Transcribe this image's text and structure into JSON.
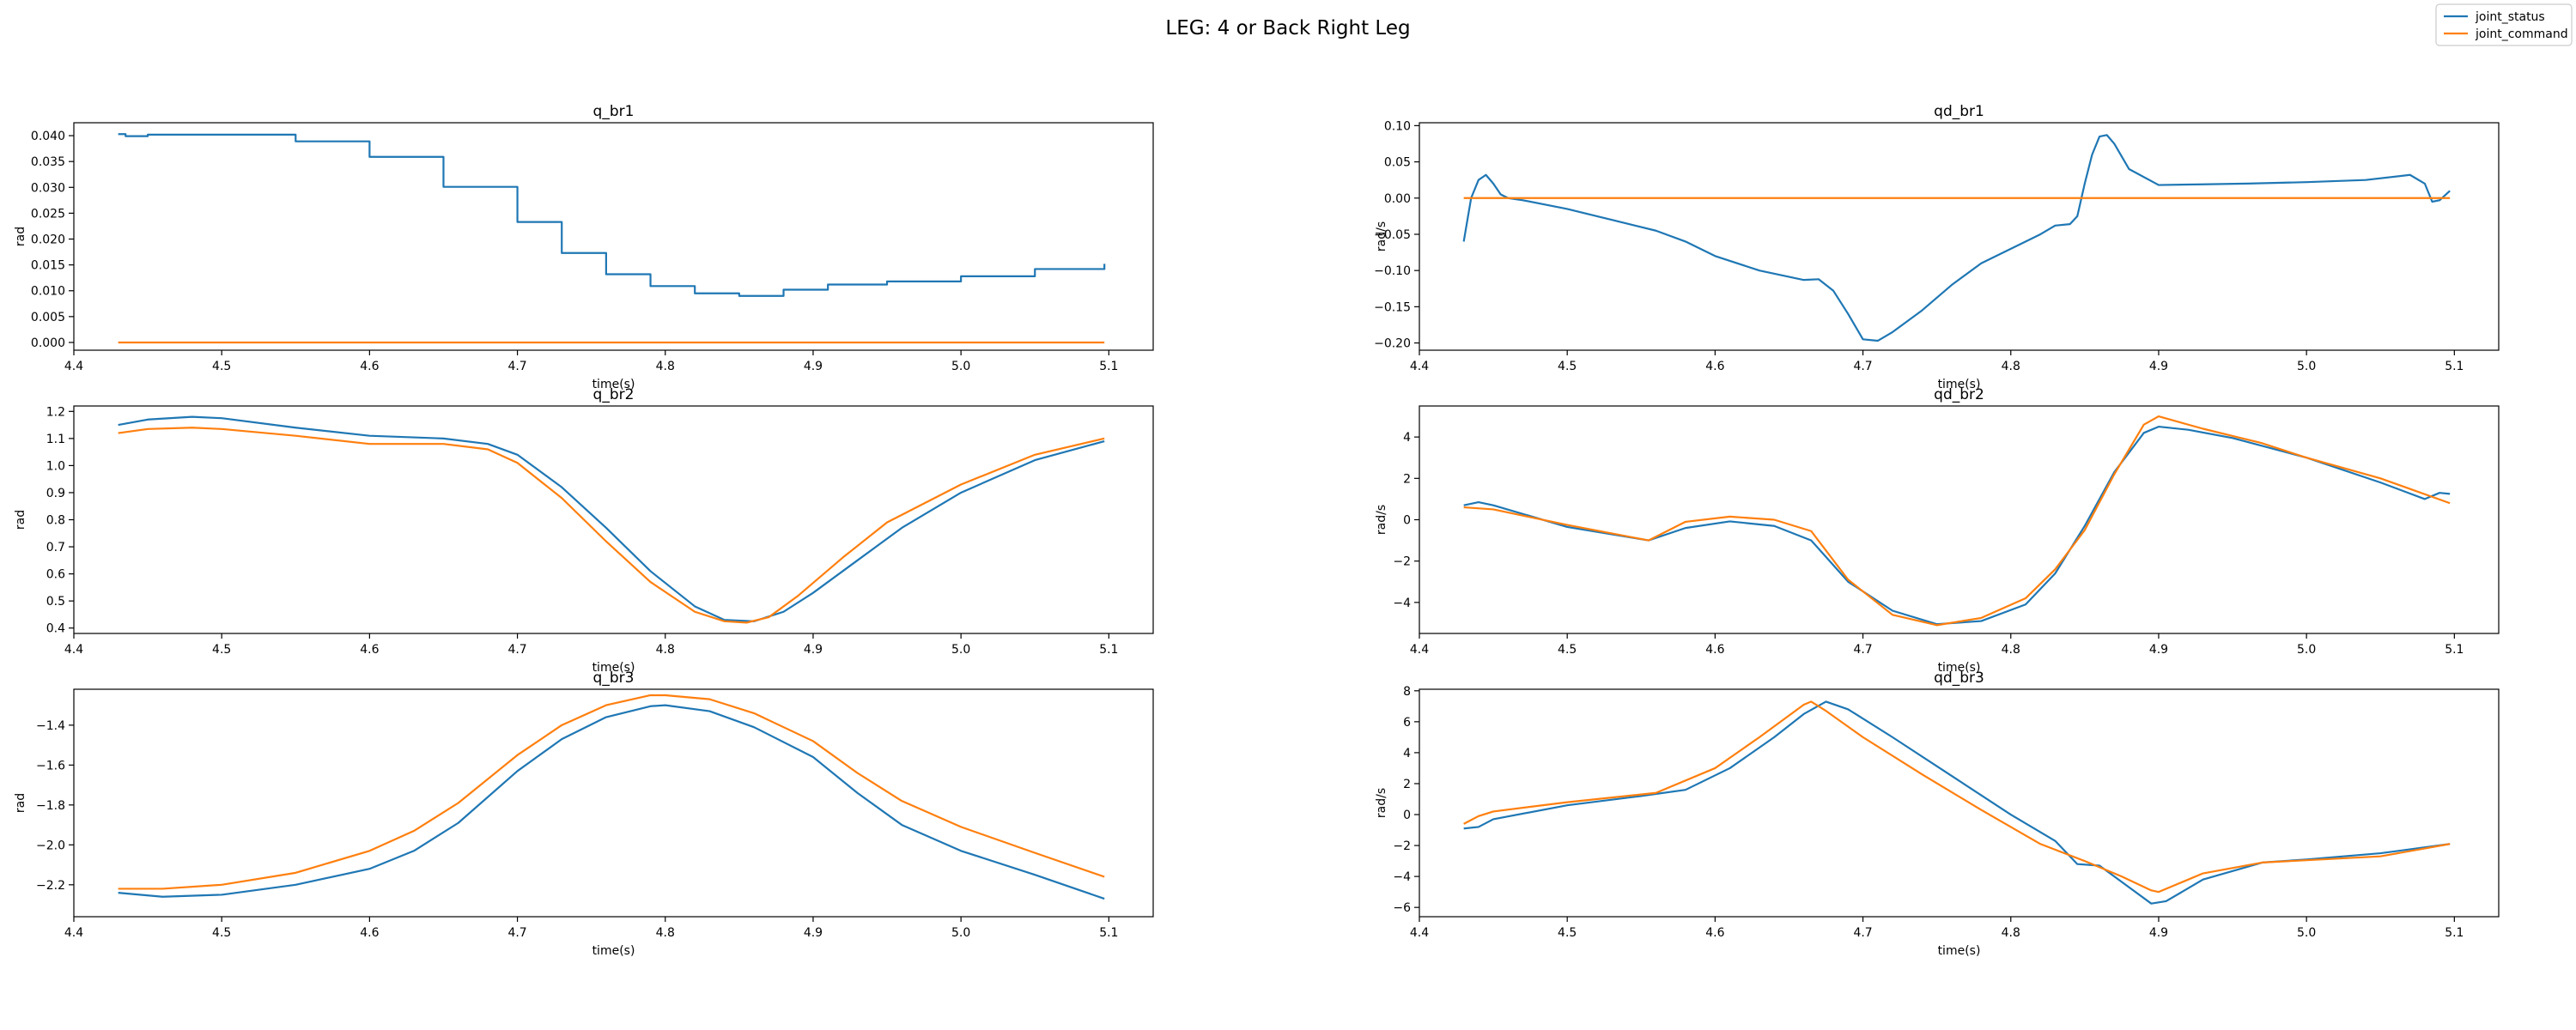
{
  "figure": {
    "suptitle": "LEG: 4 or Back Right Leg",
    "colors": {
      "joint_status": "#1f77b4",
      "joint_command": "#ff7f0e"
    },
    "legend": {
      "placement": "top-right",
      "entries": [
        "joint_status",
        "joint_command"
      ]
    }
  },
  "chart_data": [
    {
      "type": "line",
      "title": "q_br1",
      "xlabel": "time(s)",
      "ylabel": "rad",
      "xlim": [
        4.4,
        5.13
      ],
      "ylim": [
        -0.0015,
        0.0425
      ],
      "xticks": [
        4.4,
        4.5,
        4.6,
        4.7,
        4.8,
        4.9,
        5.0,
        5.1
      ],
      "xtick_labels": [
        "4.4",
        "4.5",
        "4.6",
        "4.7",
        "4.8",
        "4.9",
        "5.0",
        "5.1"
      ],
      "yticks": [
        0.0,
        0.005,
        0.01,
        0.015,
        0.02,
        0.025,
        0.03,
        0.035,
        0.04
      ],
      "ytick_labels": [
        "0.000",
        "0.005",
        "0.010",
        "0.015",
        "0.020",
        "0.025",
        "0.030",
        "0.035",
        "0.040"
      ],
      "grid": false,
      "series": [
        {
          "name": "joint_status",
          "step": true,
          "x": [
            4.43,
            4.435,
            4.44,
            4.45,
            4.48,
            4.5,
            4.55,
            4.6,
            4.65,
            4.7,
            4.73,
            4.76,
            4.79,
            4.82,
            4.85,
            4.88,
            4.91,
            4.95,
            5.0,
            5.05,
            5.097
          ],
          "y": [
            0.0403,
            0.0399,
            0.0399,
            0.0402,
            0.0402,
            0.0402,
            0.0389,
            0.0359,
            0.0301,
            0.0233,
            0.0173,
            0.0132,
            0.0109,
            0.0095,
            0.009,
            0.0102,
            0.0112,
            0.0118,
            0.0128,
            0.0142,
            0.0152
          ]
        },
        {
          "name": "joint_command",
          "x": [
            4.43,
            5.097
          ],
          "y": [
            0.0,
            0.0
          ]
        }
      ]
    },
    {
      "type": "line",
      "title": "qd_br1",
      "xlabel": "time(s)",
      "ylabel": "rad/s",
      "xlim": [
        4.4,
        5.13
      ],
      "ylim": [
        -0.21,
        0.104
      ],
      "xticks": [
        4.4,
        4.5,
        4.6,
        4.7,
        4.8,
        4.9,
        5.0,
        5.1
      ],
      "xtick_labels": [
        "4.4",
        "4.5",
        "4.6",
        "4.7",
        "4.8",
        "4.9",
        "5.0",
        "5.1"
      ],
      "yticks": [
        -0.2,
        -0.15,
        -0.1,
        -0.05,
        0.0,
        0.05,
        0.1
      ],
      "ytick_labels": [
        "−0.20",
        "−0.15",
        "−0.10",
        "−0.05",
        "0.00",
        "0.05",
        "0.10"
      ],
      "grid": false,
      "series": [
        {
          "name": "joint_status",
          "x": [
            4.43,
            4.435,
            4.44,
            4.445,
            4.45,
            4.455,
            4.46,
            4.47,
            4.5,
            4.53,
            4.56,
            4.58,
            4.6,
            4.63,
            4.66,
            4.67,
            4.68,
            4.69,
            4.7,
            4.71,
            4.72,
            4.74,
            4.76,
            4.78,
            4.8,
            4.82,
            4.83,
            4.84,
            4.845,
            4.85,
            4.855,
            4.86,
            4.865,
            4.87,
            4.88,
            4.9,
            4.93,
            4.96,
            5.0,
            5.04,
            5.07,
            5.08,
            5.085,
            5.09,
            5.097
          ],
          "y": [
            -0.06,
            0.0,
            0.025,
            0.032,
            0.02,
            0.005,
            0.0,
            -0.003,
            -0.015,
            -0.03,
            -0.045,
            -0.06,
            -0.08,
            -0.1,
            -0.113,
            -0.112,
            -0.128,
            -0.16,
            -0.195,
            -0.197,
            -0.185,
            -0.155,
            -0.12,
            -0.09,
            -0.07,
            -0.05,
            -0.038,
            -0.036,
            -0.025,
            0.02,
            0.06,
            0.085,
            0.087,
            0.075,
            0.04,
            0.018,
            0.019,
            0.02,
            0.022,
            0.025,
            0.032,
            0.02,
            -0.005,
            -0.003,
            0.01
          ]
        },
        {
          "name": "joint_command",
          "x": [
            4.43,
            5.097
          ],
          "y": [
            0.0,
            0.0
          ]
        }
      ]
    },
    {
      "type": "line",
      "title": "q_br2",
      "xlabel": "time(s)",
      "ylabel": "rad",
      "xlim": [
        4.4,
        5.13
      ],
      "ylim": [
        0.38,
        1.22
      ],
      "xticks": [
        4.4,
        4.5,
        4.6,
        4.7,
        4.8,
        4.9,
        5.0,
        5.1
      ],
      "xtick_labels": [
        "4.4",
        "4.5",
        "4.6",
        "4.7",
        "4.8",
        "4.9",
        "5.0",
        "5.1"
      ],
      "yticks": [
        0.4,
        0.5,
        0.6,
        0.7,
        0.8,
        0.9,
        1.0,
        1.1,
        1.2
      ],
      "ytick_labels": [
        "0.4",
        "0.5",
        "0.6",
        "0.7",
        "0.8",
        "0.9",
        "1.0",
        "1.1",
        "1.2"
      ],
      "grid": false,
      "series": [
        {
          "name": "joint_status",
          "x": [
            4.43,
            4.45,
            4.48,
            4.5,
            4.55,
            4.6,
            4.65,
            4.68,
            4.7,
            4.73,
            4.76,
            4.79,
            4.82,
            4.84,
            4.86,
            4.88,
            4.9,
            4.93,
            4.96,
            5.0,
            5.05,
            5.097
          ],
          "y": [
            1.15,
            1.17,
            1.18,
            1.175,
            1.14,
            1.11,
            1.1,
            1.08,
            1.04,
            0.92,
            0.77,
            0.61,
            0.48,
            0.43,
            0.425,
            0.46,
            0.53,
            0.65,
            0.77,
            0.9,
            1.02,
            1.09
          ]
        },
        {
          "name": "joint_command",
          "x": [
            4.43,
            4.45,
            4.48,
            4.5,
            4.55,
            4.6,
            4.65,
            4.68,
            4.7,
            4.73,
            4.76,
            4.79,
            4.82,
            4.84,
            4.855,
            4.87,
            4.89,
            4.92,
            4.95,
            5.0,
            5.05,
            5.097
          ],
          "y": [
            1.12,
            1.135,
            1.14,
            1.135,
            1.11,
            1.08,
            1.08,
            1.06,
            1.01,
            0.88,
            0.72,
            0.57,
            0.46,
            0.425,
            0.42,
            0.44,
            0.52,
            0.66,
            0.79,
            0.93,
            1.04,
            1.1
          ]
        }
      ]
    },
    {
      "type": "line",
      "title": "qd_br2",
      "xlabel": "time(s)",
      "ylabel": "rad/s",
      "xlim": [
        4.4,
        5.13
      ],
      "ylim": [
        -5.5,
        5.5
      ],
      "xticks": [
        4.4,
        4.5,
        4.6,
        4.7,
        4.8,
        4.9,
        5.0,
        5.1
      ],
      "xtick_labels": [
        "4.4",
        "4.5",
        "4.6",
        "4.7",
        "4.8",
        "4.9",
        "5.0",
        "5.1"
      ],
      "yticks": [
        -4,
        -2,
        0,
        2,
        4
      ],
      "ytick_labels": [
        "−4",
        "−2",
        "0",
        "2",
        "4"
      ],
      "grid": false,
      "series": [
        {
          "name": "joint_status",
          "x": [
            4.43,
            4.44,
            4.45,
            4.5,
            4.555,
            4.58,
            4.61,
            4.64,
            4.665,
            4.69,
            4.72,
            4.75,
            4.78,
            4.81,
            4.83,
            4.85,
            4.87,
            4.89,
            4.9,
            4.92,
            4.95,
            5.0,
            5.05,
            5.08,
            5.09,
            5.097
          ],
          "y": [
            0.7,
            0.85,
            0.7,
            -0.35,
            -1.0,
            -0.4,
            -0.08,
            -0.3,
            -1.0,
            -3.0,
            -4.4,
            -5.05,
            -4.9,
            -4.1,
            -2.6,
            -0.3,
            2.3,
            4.2,
            4.5,
            4.35,
            3.95,
            3.0,
            1.8,
            1.0,
            1.3,
            1.25
          ]
        },
        {
          "name": "joint_command",
          "x": [
            4.43,
            4.45,
            4.5,
            4.555,
            4.58,
            4.61,
            4.64,
            4.665,
            4.69,
            4.72,
            4.75,
            4.78,
            4.81,
            4.83,
            4.85,
            4.87,
            4.89,
            4.9,
            4.93,
            4.97,
            5.0,
            5.05,
            5.097
          ],
          "y": [
            0.6,
            0.5,
            -0.25,
            -1.0,
            -0.1,
            0.15,
            0.0,
            -0.55,
            -2.9,
            -4.6,
            -5.1,
            -4.75,
            -3.8,
            -2.4,
            -0.5,
            2.2,
            4.6,
            5.0,
            4.4,
            3.7,
            3.0,
            2.0,
            0.8
          ]
        }
      ]
    },
    {
      "type": "line",
      "title": "q_br3",
      "xlabel": "time(s)",
      "ylabel": "rad",
      "xlim": [
        4.4,
        5.13
      ],
      "ylim": [
        -2.36,
        -1.22
      ],
      "xticks": [
        4.4,
        4.5,
        4.6,
        4.7,
        4.8,
        4.9,
        5.0,
        5.1
      ],
      "xtick_labels": [
        "4.4",
        "4.5",
        "4.6",
        "4.7",
        "4.8",
        "4.9",
        "5.0",
        "5.1"
      ],
      "yticks": [
        -2.2,
        -2.0,
        -1.8,
        -1.6,
        -1.4
      ],
      "ytick_labels": [
        "−2.2",
        "−2.0",
        "−1.8",
        "−1.6",
        "−1.4"
      ],
      "grid": false,
      "series": [
        {
          "name": "joint_status",
          "x": [
            4.43,
            4.46,
            4.5,
            4.55,
            4.6,
            4.63,
            4.66,
            4.7,
            4.73,
            4.76,
            4.79,
            4.8,
            4.83,
            4.86,
            4.9,
            4.93,
            4.96,
            5.0,
            5.05,
            5.097
          ],
          "y": [
            -2.24,
            -2.26,
            -2.25,
            -2.2,
            -2.12,
            -2.03,
            -1.89,
            -1.63,
            -1.47,
            -1.36,
            -1.305,
            -1.3,
            -1.33,
            -1.41,
            -1.56,
            -1.74,
            -1.9,
            -2.03,
            -2.15,
            -2.27
          ]
        },
        {
          "name": "joint_command",
          "x": [
            4.43,
            4.46,
            4.5,
            4.55,
            4.6,
            4.63,
            4.66,
            4.7,
            4.73,
            4.76,
            4.79,
            4.8,
            4.83,
            4.86,
            4.9,
            4.93,
            4.96,
            5.0,
            5.05,
            5.097
          ],
          "y": [
            -2.22,
            -2.22,
            -2.2,
            -2.14,
            -2.03,
            -1.93,
            -1.79,
            -1.55,
            -1.4,
            -1.3,
            -1.25,
            -1.25,
            -1.27,
            -1.34,
            -1.48,
            -1.64,
            -1.78,
            -1.91,
            -2.04,
            -2.16
          ]
        }
      ]
    },
    {
      "type": "line",
      "title": "qd_br3",
      "xlabel": "time(s)",
      "ylabel": "rad/s",
      "xlim": [
        4.4,
        5.13
      ],
      "ylim": [
        -6.6,
        8.1
      ],
      "xticks": [
        4.4,
        4.5,
        4.6,
        4.7,
        4.8,
        4.9,
        5.0,
        5.1
      ],
      "xtick_labels": [
        "4.4",
        "4.5",
        "4.6",
        "4.7",
        "4.8",
        "4.9",
        "5.0",
        "5.1"
      ],
      "yticks": [
        -6,
        -4,
        -2,
        0,
        2,
        4,
        6,
        8
      ],
      "ytick_labels": [
        "−6",
        "−4",
        "−2",
        "0",
        "2",
        "4",
        "6",
        "8"
      ],
      "grid": false,
      "series": [
        {
          "name": "joint_status",
          "x": [
            4.43,
            4.44,
            4.45,
            4.5,
            4.55,
            4.58,
            4.61,
            4.64,
            4.66,
            4.675,
            4.69,
            4.72,
            4.76,
            4.8,
            4.83,
            4.845,
            4.86,
            4.88,
            4.895,
            4.905,
            4.93,
            4.97,
            5.0,
            5.05,
            5.097
          ],
          "y": [
            -0.9,
            -0.8,
            -0.3,
            0.6,
            1.2,
            1.6,
            3.0,
            5.0,
            6.5,
            7.3,
            6.8,
            5.0,
            2.5,
            0.0,
            -1.7,
            -3.2,
            -3.3,
            -4.7,
            -5.75,
            -5.6,
            -4.2,
            -3.1,
            -2.9,
            -2.5,
            -1.9
          ]
        },
        {
          "name": "joint_command",
          "x": [
            4.43,
            4.44,
            4.45,
            4.5,
            4.56,
            4.6,
            4.63,
            4.66,
            4.665,
            4.675,
            4.7,
            4.74,
            4.78,
            4.82,
            4.85,
            4.875,
            4.895,
            4.9,
            4.93,
            4.97,
            5.0,
            5.05,
            5.097
          ],
          "y": [
            -0.6,
            -0.1,
            0.2,
            0.8,
            1.4,
            3.0,
            5.0,
            7.1,
            7.3,
            6.7,
            5.0,
            2.6,
            0.3,
            -1.9,
            -3.0,
            -4.0,
            -4.9,
            -5.0,
            -3.8,
            -3.1,
            -2.95,
            -2.7,
            -1.9
          ]
        }
      ]
    }
  ]
}
